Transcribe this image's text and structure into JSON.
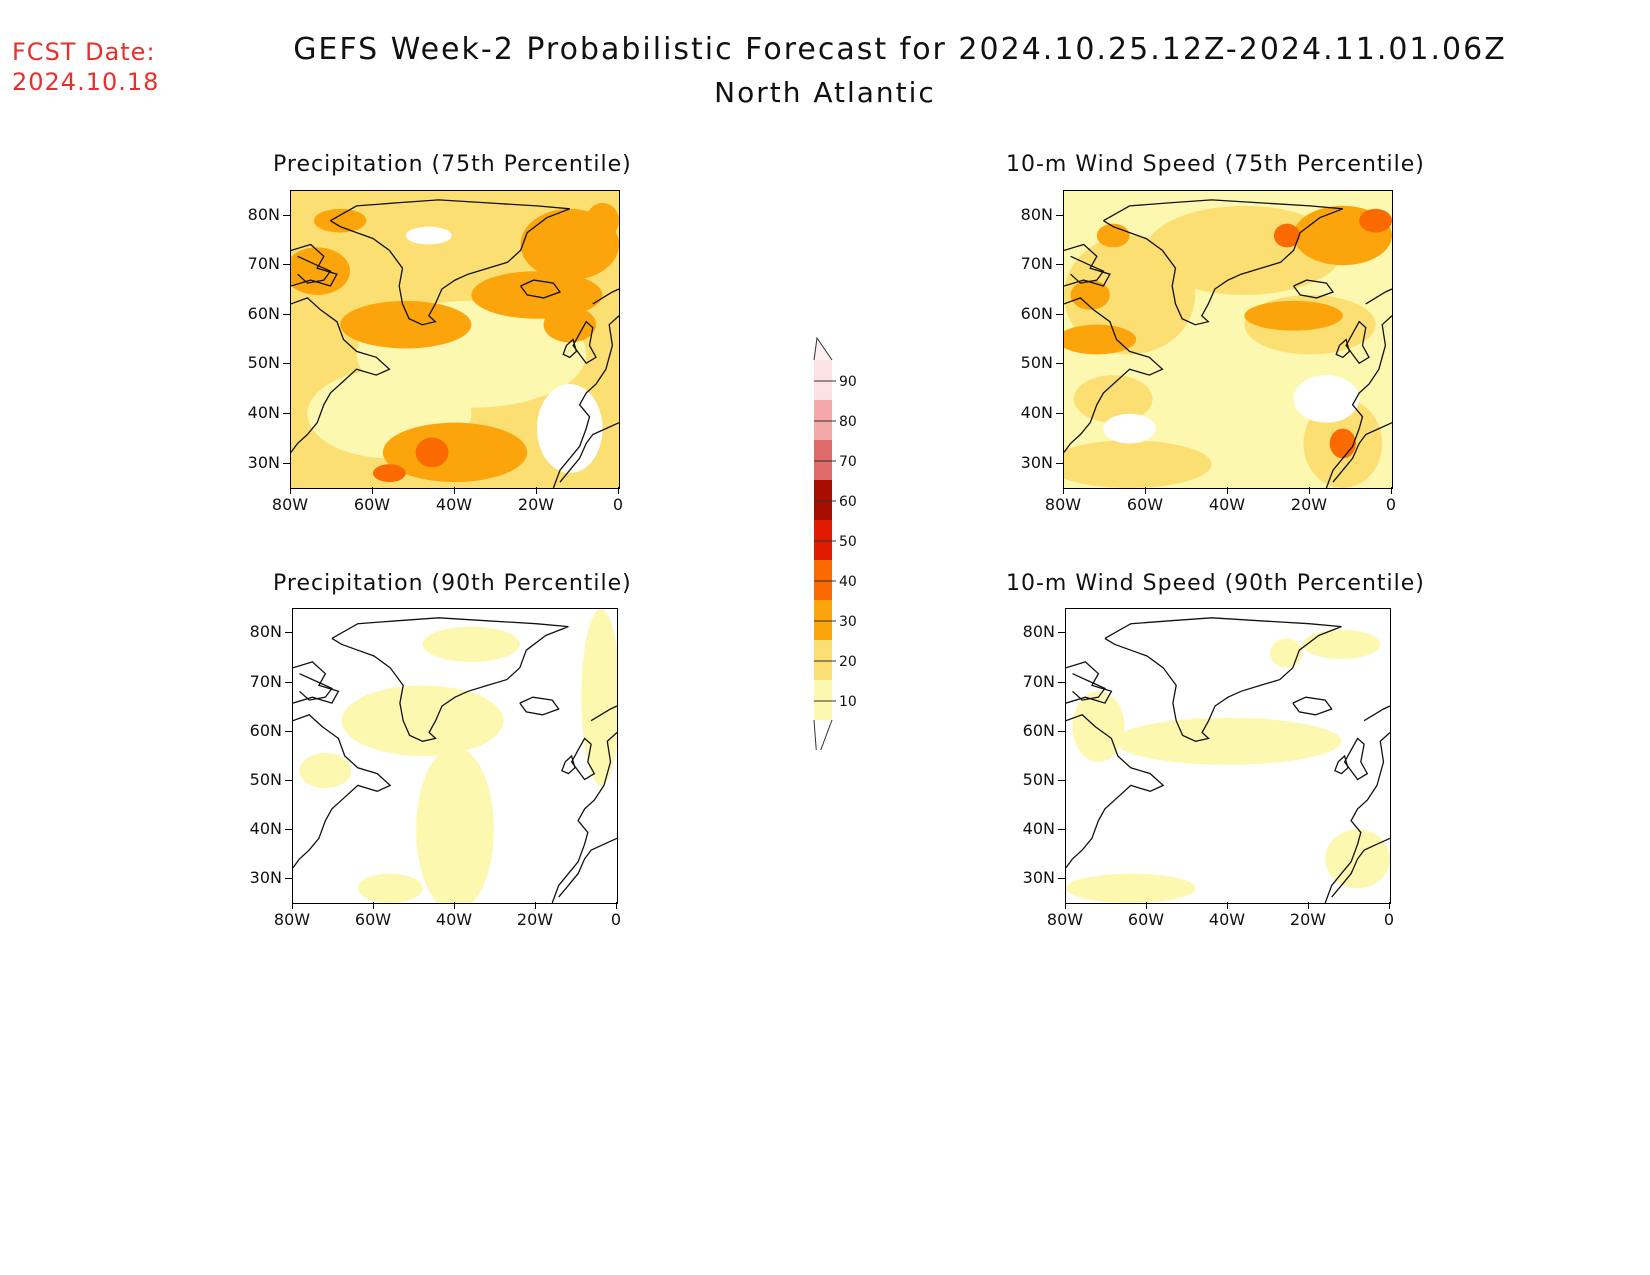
{
  "header": {
    "fcst_label": "FCST Date:",
    "fcst_date": "2024.10.18",
    "title": "GEFS Week-2 Probabilistic Forecast for 2024.10.25.12Z-2024.11.01.06Z",
    "subtitle": "North Atlantic"
  },
  "panels": [
    {
      "id": "precip-75",
      "title": "Precipitation (75th Percentile)"
    },
    {
      "id": "wind-75",
      "title": "10-m Wind Speed (75th Percentile)"
    },
    {
      "id": "precip-90",
      "title": "Precipitation (90th Percentile)"
    },
    {
      "id": "wind-90",
      "title": "10-m Wind Speed (90th Percentile)"
    }
  ],
  "axes": {
    "lat_labels": [
      "80N",
      "70N",
      "60N",
      "50N",
      "40N",
      "30N"
    ],
    "lon_labels": [
      "80W",
      "60W",
      "40W",
      "20W",
      "0"
    ]
  },
  "colorbar": {
    "levels": [
      "10",
      "20",
      "30",
      "40",
      "50",
      "60",
      "70",
      "80",
      "90"
    ],
    "colors": [
      "#fdf8b0",
      "#fbdf73",
      "#fba40c",
      "#fb6a00",
      "#e01b00",
      "#a50e00",
      "#de6a6a",
      "#f4a9a9",
      "#fde2e4"
    ]
  }
}
